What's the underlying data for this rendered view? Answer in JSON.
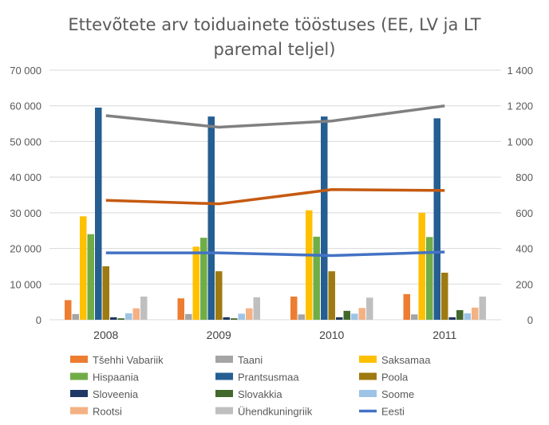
{
  "chart_data": {
    "type": "bar",
    "title_lines": [
      "Ettevõtete arv toiduainete tööstuses (EE, LV ja LT",
      "paremal teljel)"
    ],
    "categories": [
      "2008",
      "2009",
      "2010",
      "2011"
    ],
    "y_left": {
      "min": 0,
      "max": 70000,
      "ticks": [
        0,
        10000,
        20000,
        30000,
        40000,
        50000,
        60000,
        70000
      ],
      "tick_labels": [
        "0",
        "10 000",
        "20 000",
        "30 000",
        "40 000",
        "50 000",
        "60 000",
        "70 000"
      ]
    },
    "y_right": {
      "min": 0,
      "max": 1400,
      "ticks": [
        0,
        200,
        400,
        600,
        800,
        1000,
        1200,
        1400
      ],
      "tick_labels": [
        "0",
        "200",
        "400",
        "600",
        "800",
        "1 000",
        "1 200",
        "1 400"
      ]
    },
    "grid": true,
    "legend_position": "bottom",
    "bar_series": [
      {
        "name": "Tšehhi Vabariik",
        "color": "#ed7d31",
        "values": [
          5500,
          6000,
          6500,
          7200
        ]
      },
      {
        "name": "Taani",
        "color": "#a5a5a5",
        "values": [
          1600,
          1600,
          1500,
          1500
        ]
      },
      {
        "name": "Saksamaa",
        "color": "#ffc000",
        "values": [
          29000,
          20500,
          30700,
          30000
        ]
      },
      {
        "name": "Hispaania",
        "color": "#70ad47",
        "values": [
          24000,
          23000,
          23300,
          23200
        ]
      },
      {
        "name": "Prantsusmaa",
        "color": "#255e91",
        "values": [
          59500,
          57000,
          57000,
          56500
        ]
      },
      {
        "name": "Poola",
        "color": "#9e7a10",
        "values": [
          15000,
          13600,
          13600,
          13200
        ]
      },
      {
        "name": "Sloveenia",
        "color": "#203864",
        "values": [
          700,
          700,
          700,
          700
        ]
      },
      {
        "name": "Slovakkia",
        "color": "#43682b",
        "values": [
          400,
          400,
          2500,
          2700
        ]
      },
      {
        "name": "Soome",
        "color": "#9dc3e6",
        "values": [
          1800,
          1700,
          1700,
          1800
        ]
      },
      {
        "name": "Rootsi",
        "color": "#f4b183",
        "values": [
          3200,
          3200,
          3300,
          3400
        ]
      },
      {
        "name": "Ühendkuningriik",
        "color": "#bfbfbf",
        "values": [
          6500,
          6300,
          6200,
          6500
        ]
      }
    ],
    "line_series": [
      {
        "name": "Eesti",
        "axis": "right",
        "color": "#4472c4",
        "values": [
          375,
          375,
          360,
          380
        ]
      }
    ],
    "unlabeled_line_series": [
      {
        "axis": "right",
        "color": "#808080",
        "values": [
          1145,
          1080,
          1115,
          1200
        ]
      },
      {
        "axis": "right",
        "color": "#c55a11",
        "values": [
          670,
          650,
          730,
          725
        ]
      }
    ]
  }
}
